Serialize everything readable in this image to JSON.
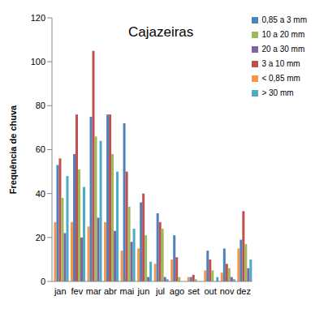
{
  "chart_data": {
    "type": "bar",
    "title": "Cajazeiras",
    "y_label": "Frequência de chuva",
    "categories": [
      "jan",
      "fev",
      "mar",
      "abr",
      "mai",
      "jun",
      "jul",
      "ago",
      "set",
      "out",
      "nov",
      "dez"
    ],
    "series": [
      {
        "name": "< 0,85 mm",
        "color": "#F79646",
        "values": [
          27,
          27,
          25,
          27,
          14,
          15,
          8,
          10,
          2,
          5,
          4,
          15
        ]
      },
      {
        "name": "0,85 a 3 mm",
        "color": "#4F81BD",
        "values": [
          53,
          58,
          75,
          76,
          72,
          36,
          31,
          21,
          2,
          14,
          15,
          19
        ]
      },
      {
        "name": "3 a 10 mm",
        "color": "#C0504D",
        "values": [
          56,
          76,
          105,
          76,
          50,
          40,
          27,
          11,
          3,
          10,
          8,
          32
        ]
      },
      {
        "name": "10 a 20 mm",
        "color": "#9BBB59",
        "values": [
          38,
          51,
          66,
          58,
          34,
          21,
          24,
          2,
          1,
          5,
          6,
          17
        ]
      },
      {
        "name": "20 a 30 mm",
        "color": "#8064A2",
        "values": [
          22,
          20,
          29,
          23,
          18,
          2,
          2,
          0,
          0,
          0,
          2,
          6
        ]
      },
      {
        "name": "> 30 mm",
        "color": "#4BACC6",
        "values": [
          48,
          43,
          64,
          50,
          24,
          9,
          1,
          0,
          0,
          2,
          1,
          10
        ]
      }
    ],
    "ylim": [
      0,
      120
    ],
    "yticks": [
      0,
      20,
      40,
      60,
      80,
      100,
      120
    ],
    "grid": false,
    "legend": "top right"
  }
}
